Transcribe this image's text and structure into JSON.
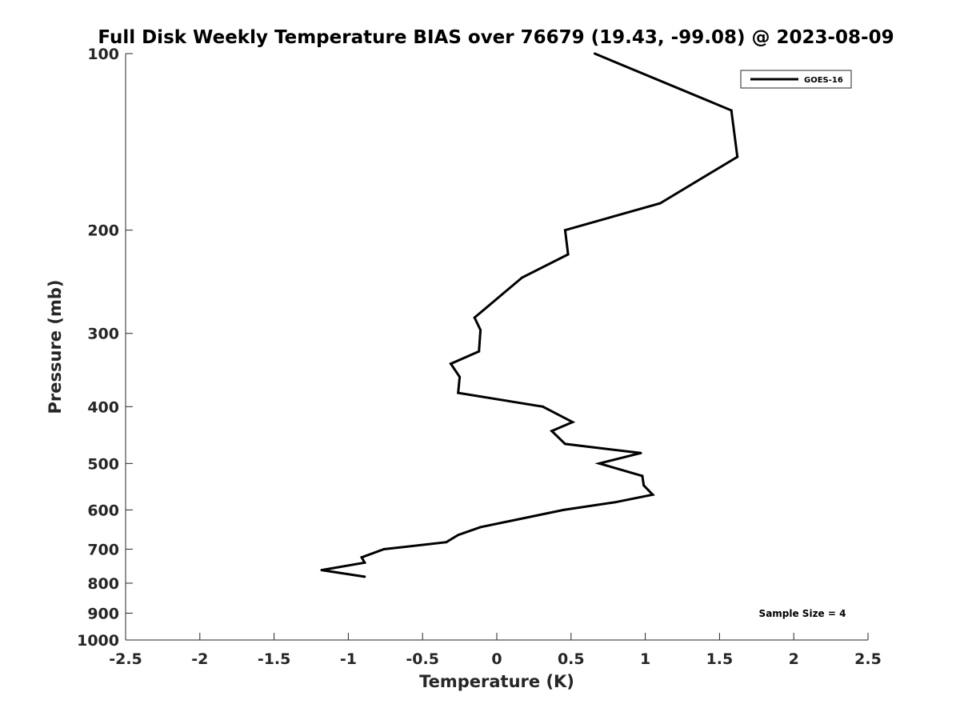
{
  "chart_data": {
    "type": "line",
    "title": "Full Disk Weekly Temperature BIAS over 76679 (19.43, -99.08) @ 2023-08-09",
    "xlabel": "Temperature (K)",
    "ylabel": "Pressure (mb)",
    "xlim": [
      -2.5,
      2.5
    ],
    "ylim": [
      100,
      1000
    ],
    "yscale": "log",
    "y_reversed": true,
    "x_ticks": [
      "-2.5",
      "-2",
      "-1.5",
      "-1",
      "-0.5",
      "0",
      "0.5",
      "1",
      "1.5",
      "2",
      "2.5"
    ],
    "x_tick_values": [
      -2.5,
      -2,
      -1.5,
      -1,
      -0.5,
      0,
      0.5,
      1,
      1.5,
      2,
      2.5
    ],
    "y_ticks": [
      "100",
      "200",
      "300",
      "400",
      "500",
      "600",
      "700",
      "800",
      "900",
      "1000"
    ],
    "y_tick_values": [
      100,
      200,
      300,
      400,
      500,
      600,
      700,
      800,
      900,
      1000
    ],
    "grid": false,
    "legend_position": "top-right",
    "annotation": "Sample Size = 4",
    "series": [
      {
        "name": "GOES-16",
        "color": "#000000",
        "points": [
          {
            "x": 0.66,
            "p": 100
          },
          {
            "x": 1.58,
            "p": 125
          },
          {
            "x": 1.62,
            "p": 150
          },
          {
            "x": 1.1,
            "p": 180
          },
          {
            "x": 0.46,
            "p": 200
          },
          {
            "x": 0.48,
            "p": 220
          },
          {
            "x": 0.17,
            "p": 241
          },
          {
            "x": -0.15,
            "p": 282
          },
          {
            "x": -0.11,
            "p": 296
          },
          {
            "x": -0.12,
            "p": 322
          },
          {
            "x": -0.31,
            "p": 338
          },
          {
            "x": -0.25,
            "p": 356
          },
          {
            "x": -0.26,
            "p": 379
          },
          {
            "x": 0.31,
            "p": 400
          },
          {
            "x": 0.51,
            "p": 425
          },
          {
            "x": 0.37,
            "p": 440
          },
          {
            "x": 0.46,
            "p": 463
          },
          {
            "x": 0.97,
            "p": 480
          },
          {
            "x": 0.69,
            "p": 500
          },
          {
            "x": 0.98,
            "p": 525
          },
          {
            "x": 0.99,
            "p": 545
          },
          {
            "x": 1.05,
            "p": 565
          },
          {
            "x": 0.8,
            "p": 582
          },
          {
            "x": 0.45,
            "p": 600
          },
          {
            "x": -0.11,
            "p": 642
          },
          {
            "x": -0.26,
            "p": 662
          },
          {
            "x": -0.34,
            "p": 681
          },
          {
            "x": -0.76,
            "p": 700
          },
          {
            "x": -0.91,
            "p": 723
          },
          {
            "x": -0.89,
            "p": 738
          },
          {
            "x": -1.18,
            "p": 760
          },
          {
            "x": -0.89,
            "p": 780
          }
        ]
      }
    ]
  }
}
